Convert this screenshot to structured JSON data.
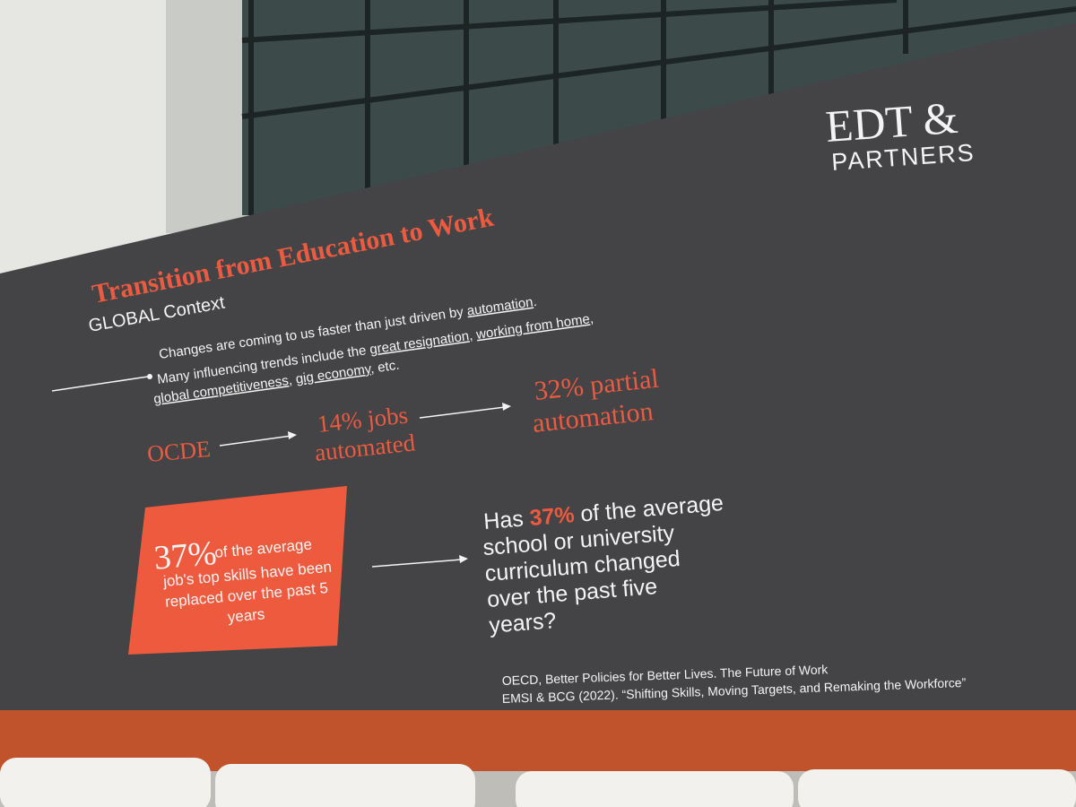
{
  "logo": {
    "line1": "EDT &",
    "line2": "PARTNERS"
  },
  "slide": {
    "title": "Transition from Education to Work",
    "subtitle": "GLOBAL Context",
    "bullet_lines": [
      [
        "Changes are coming to us faster than just driven by ",
        "automation",
        "."
      ],
      [
        "Many influencing trends include the ",
        "great resignation",
        ", ",
        "working from home",
        ","
      ],
      [
        "global competitiveness",
        ", ",
        "gig economy",
        ", etc."
      ]
    ],
    "flow": {
      "source": "OCDE",
      "step1": [
        "14% jobs",
        "automated"
      ],
      "step2": [
        "32% partial",
        "automation"
      ]
    },
    "box": {
      "figure": "37%",
      "lines": [
        "of the average",
        "job's top skills have been",
        "replaced over the past 5",
        "years"
      ]
    },
    "question": [
      [
        "Has ",
        "37%",
        " of the average"
      ],
      [
        "school or university"
      ],
      [
        "curriculum changed"
      ],
      [
        "over the past five"
      ],
      [
        "years?"
      ]
    ],
    "sources": [
      "OECD, Better Policies for Better Lives. The Future of Work",
      "EMSI & BCG (2022). “Shifting Skills, Moving Targets, and Remaking the Workforce”"
    ]
  }
}
